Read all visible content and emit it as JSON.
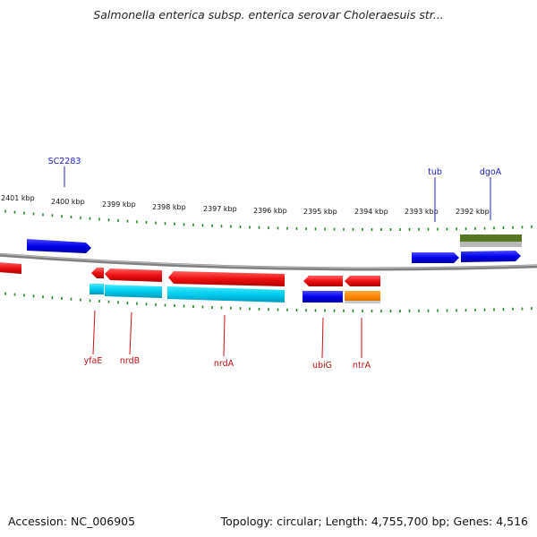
{
  "header": {
    "title": "Salmonella enterica subsp. enterica serovar Choleraesuis str..."
  },
  "footer": {
    "accession": "Accession: NC_006905",
    "summary": "Topology: circular; Length: 4,755,700 bp; Genes: 4,516"
  },
  "scale": {
    "labels": [
      "2401 kbp",
      "2400 kbp",
      "2399 kbp",
      "2398 kbp",
      "2397 kbp",
      "2396 kbp",
      "2395 kbp",
      "2394 kbp",
      "2393 kbp",
      "2392 kbp"
    ]
  },
  "colors": {
    "backbone": "#808080",
    "forward_cds": "#0000ee",
    "reverse_cds": "#ee1111",
    "cyan_feature": "#00ccee",
    "orange_feature": "#ff8800",
    "olive_feature": "#557722",
    "grey_feature": "#b0b0b0",
    "tick": "#228822",
    "top_label": "#1a1ad0",
    "bottom_label": "#c01010"
  },
  "gene_labels_top": [
    "SC2283",
    "tub",
    "dgoA"
  ],
  "gene_labels_bottom": [
    "yfaE",
    "nrdB",
    "nrdA",
    "ubiG",
    "ntrA"
  ]
}
